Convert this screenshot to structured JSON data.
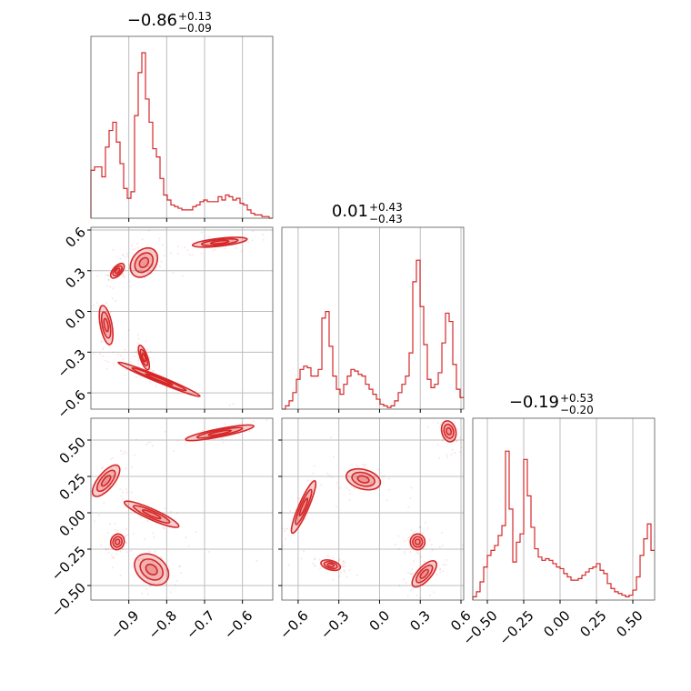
{
  "chart_data": {
    "type": "corner",
    "color": "#d62728",
    "grid": true,
    "params": [
      {
        "median": "−0.86",
        "plus": "+0.13",
        "minus": "−0.09",
        "range": [
          -1.0,
          -0.52
        ],
        "ticks": [
          -0.9,
          -0.8,
          -0.7,
          -0.6
        ],
        "tick_labels": [
          "−0.9",
          "−0.8",
          "−0.7",
          "−0.6"
        ],
        "hist": [
          0.29,
          0.31,
          0.31,
          0.25,
          0.43,
          0.53,
          0.58,
          0.46,
          0.33,
          0.18,
          0.12,
          0.16,
          0.62,
          0.88,
          1.0,
          0.72,
          0.58,
          0.42,
          0.37,
          0.24,
          0.14,
          0.11,
          0.08,
          0.07,
          0.06,
          0.05,
          0.05,
          0.05,
          0.07,
          0.08,
          0.1,
          0.11,
          0.1,
          0.1,
          0.1,
          0.13,
          0.11,
          0.14,
          0.13,
          0.11,
          0.12,
          0.09,
          0.08,
          0.05,
          0.03,
          0.02,
          0.02,
          0.01,
          0.01,
          0.0
        ]
      },
      {
        "median": "0.01",
        "plus": "+0.43",
        "minus": "−0.43",
        "range": [
          -0.72,
          0.62
        ],
        "ticks": [
          -0.6,
          -0.3,
          0.0,
          0.3,
          0.6
        ],
        "tick_labels": [
          "−0.6",
          "−0.3",
          "0.0",
          "0.3",
          "0.6"
        ],
        "hist": [
          0.0,
          0.02,
          0.05,
          0.1,
          0.18,
          0.24,
          0.26,
          0.25,
          0.2,
          0.2,
          0.24,
          0.55,
          0.59,
          0.38,
          0.2,
          0.12,
          0.09,
          0.15,
          0.2,
          0.24,
          0.23,
          0.21,
          0.2,
          0.15,
          0.12,
          0.09,
          0.06,
          0.03,
          0.02,
          0.01,
          0.02,
          0.05,
          0.1,
          0.15,
          0.2,
          0.34,
          0.77,
          0.9,
          0.62,
          0.39,
          0.18,
          0.13,
          0.15,
          0.22,
          0.4,
          0.58,
          0.53,
          0.27,
          0.12,
          0.07
        ]
      },
      {
        "median": "−0.19",
        "plus": "+0.53",
        "minus": "−0.20",
        "range": [
          -0.6,
          0.65
        ],
        "ticks": [
          -0.5,
          -0.25,
          0.0,
          0.25,
          0.5
        ],
        "tick_labels": [
          "−0.50",
          "−0.25",
          "0.00",
          "0.25",
          "0.50"
        ],
        "hist": [
          0.02,
          0.05,
          0.11,
          0.2,
          0.27,
          0.3,
          0.33,
          0.39,
          0.45,
          0.9,
          0.55,
          0.23,
          0.35,
          0.4,
          0.85,
          0.63,
          0.44,
          0.31,
          0.26,
          0.24,
          0.25,
          0.24,
          0.22,
          0.2,
          0.19,
          0.16,
          0.14,
          0.12,
          0.12,
          0.13,
          0.15,
          0.17,
          0.19,
          0.2,
          0.22,
          0.18,
          0.16,
          0.1,
          0.07,
          0.05,
          0.04,
          0.03,
          0.02,
          0.03,
          0.06,
          0.14,
          0.27,
          0.37,
          0.46,
          0.3
        ]
      }
    ],
    "panels_2d": [
      {
        "row": 1,
        "col": 0,
        "modes": [
          {
            "x": -0.96,
            "y": -0.1,
            "sx": 0.01,
            "sy": 0.08,
            "r": -0.5
          },
          {
            "x": -0.93,
            "y": 0.3,
            "sx": 0.01,
            "sy": 0.03,
            "r": 0.6
          },
          {
            "x": -0.86,
            "y": 0.36,
            "sx": 0.02,
            "sy": 0.06,
            "r": 0.3
          },
          {
            "x": -0.86,
            "y": -0.34,
            "sx": 0.008,
            "sy": 0.05,
            "r": -0.7
          },
          {
            "x": -0.82,
            "y": -0.5,
            "sx": 0.06,
            "sy": 0.07,
            "r": -0.98
          },
          {
            "x": -0.66,
            "y": 0.51,
            "sx": 0.04,
            "sy": 0.02,
            "r": 0.6
          }
        ]
      },
      {
        "row": 2,
        "col": 0,
        "modes": [
          {
            "x": -0.96,
            "y": 0.22,
            "sx": 0.02,
            "sy": 0.06,
            "r": 0.7
          },
          {
            "x": -0.93,
            "y": -0.2,
            "sx": 0.01,
            "sy": 0.03,
            "r": 0.1
          },
          {
            "x": -0.84,
            "y": -0.01,
            "sx": 0.04,
            "sy": 0.05,
            "r": -0.9
          },
          {
            "x": -0.84,
            "y": -0.39,
            "sx": 0.025,
            "sy": 0.06,
            "r": -0.3
          },
          {
            "x": -0.66,
            "y": 0.55,
            "sx": 0.05,
            "sy": 0.03,
            "r": 0.85
          }
        ]
      },
      {
        "row": 2,
        "col": 1,
        "modes": [
          {
            "x": -0.56,
            "y": 0.04,
            "sx": 0.05,
            "sy": 0.1,
            "r": 0.9
          },
          {
            "x": -0.36,
            "y": -0.36,
            "sx": 0.04,
            "sy": 0.02,
            "r": -0.4
          },
          {
            "x": -0.12,
            "y": 0.23,
            "sx": 0.07,
            "sy": 0.04,
            "r": -0.3
          },
          {
            "x": 0.28,
            "y": -0.2,
            "sx": 0.03,
            "sy": 0.03,
            "r": 0.0
          },
          {
            "x": 0.33,
            "y": -0.42,
            "sx": 0.05,
            "sy": 0.05,
            "r": 0.7
          },
          {
            "x": 0.51,
            "y": 0.56,
            "sx": 0.03,
            "sy": 0.04,
            "r": -0.2
          }
        ]
      }
    ]
  }
}
